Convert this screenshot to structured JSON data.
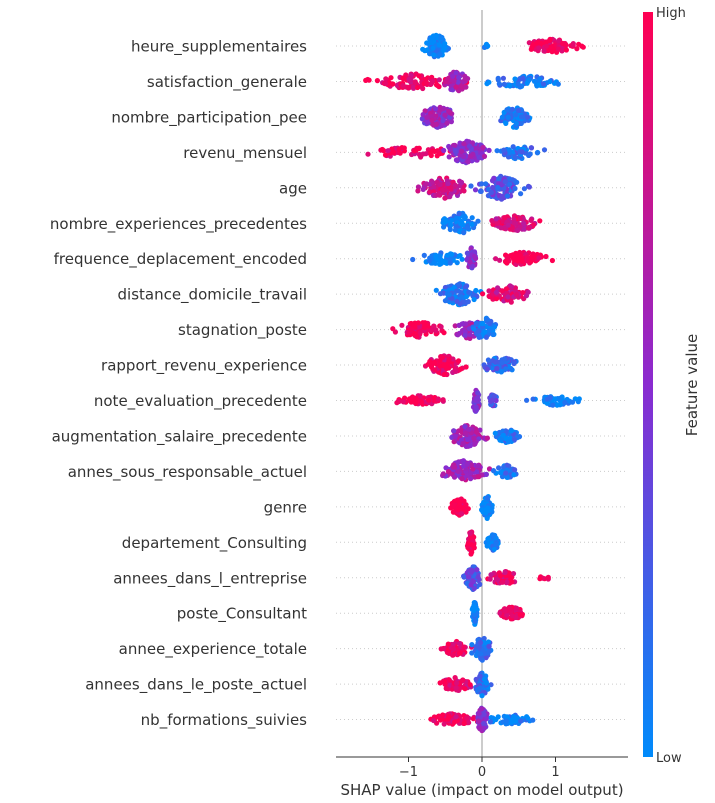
{
  "chart_data": {
    "type": "scatter",
    "subtype": "shap-beeswarm",
    "xlabel": "SHAP value (impact on model output)",
    "x_ticks": [
      -1,
      0,
      1
    ],
    "xlim": [
      -1.95,
      1.95
    ],
    "colorbar": {
      "label": "Feature value",
      "high": "High",
      "low": "Low",
      "low_color": "#008bfb",
      "mid_color": "#8a2bd0",
      "high_color": "#ff0052"
    },
    "features": [
      {
        "name": "heure_supplementaires",
        "clusters": [
          {
            "center": -0.62,
            "spread": 0.28,
            "width": 12,
            "count": 110,
            "color": 0.0
          },
          {
            "center": 0.95,
            "spread": 0.6,
            "width": 7,
            "count": 90,
            "color": 1.0
          },
          {
            "center": 0.05,
            "spread": 0.12,
            "width": 2,
            "count": 6,
            "color": 0.0
          }
        ]
      },
      {
        "name": "satisfaction_generale",
        "clusters": [
          {
            "center": -0.9,
            "spread": 0.9,
            "width": 8,
            "count": 90,
            "color": 0.95
          },
          {
            "center": -0.35,
            "spread": 0.25,
            "width": 11,
            "count": 60,
            "color": 0.6
          },
          {
            "center": 0.55,
            "spread": 0.8,
            "width": 6,
            "count": 70,
            "color": 0.08
          }
        ]
      },
      {
        "name": "nombre_participation_pee",
        "clusters": [
          {
            "center": -0.6,
            "spread": 0.4,
            "width": 11,
            "count": 110,
            "color": 0.55
          },
          {
            "center": 0.45,
            "spread": 0.3,
            "width": 11,
            "count": 80,
            "color": 0.08
          }
        ]
      },
      {
        "name": "revenu_mensuel",
        "clusters": [
          {
            "center": -0.9,
            "spread": 0.9,
            "width": 6,
            "count": 60,
            "color": 0.95
          },
          {
            "center": -0.2,
            "spread": 0.45,
            "width": 12,
            "count": 120,
            "color": 0.5
          },
          {
            "center": 0.5,
            "spread": 0.5,
            "width": 7,
            "count": 50,
            "color": 0.12
          }
        ]
      },
      {
        "name": "age",
        "clusters": [
          {
            "center": -0.5,
            "spread": 0.5,
            "width": 11,
            "count": 100,
            "color": 0.75
          },
          {
            "center": 0.25,
            "spread": 0.5,
            "width": 12,
            "count": 100,
            "color": 0.3
          }
        ]
      },
      {
        "name": "nombre_experiences_precedentes",
        "clusters": [
          {
            "center": -0.3,
            "spread": 0.35,
            "width": 11,
            "count": 70,
            "color": 0.05
          },
          {
            "center": 0.45,
            "spread": 0.55,
            "width": 8,
            "count": 80,
            "color": 0.85
          }
        ]
      },
      {
        "name": "frequence_deplacement_encoded",
        "clusters": [
          {
            "center": -0.55,
            "spread": 0.55,
            "width": 6,
            "count": 60,
            "color": 0.0
          },
          {
            "center": -0.15,
            "spread": 0.1,
            "width": 12,
            "count": 40,
            "color": 0.5
          },
          {
            "center": 0.55,
            "spread": 0.5,
            "width": 7,
            "count": 70,
            "color": 1.0
          }
        ]
      },
      {
        "name": "distance_domicile_travail",
        "clusters": [
          {
            "center": -0.3,
            "spread": 0.45,
            "width": 11,
            "count": 100,
            "color": 0.1
          },
          {
            "center": 0.35,
            "spread": 0.45,
            "width": 9,
            "count": 70,
            "color": 0.85
          }
        ]
      },
      {
        "name": "stagnation_poste",
        "clusters": [
          {
            "center": -0.85,
            "spread": 0.5,
            "width": 8,
            "count": 80,
            "color": 0.95
          },
          {
            "center": -0.15,
            "spread": 0.35,
            "width": 10,
            "count": 60,
            "color": 0.6
          },
          {
            "center": 0.05,
            "spread": 0.25,
            "width": 12,
            "count": 60,
            "color": 0.05
          }
        ]
      },
      {
        "name": "rapport_revenu_experience",
        "clusters": [
          {
            "center": -0.5,
            "spread": 0.4,
            "width": 10,
            "count": 90,
            "color": 0.95
          },
          {
            "center": 0.25,
            "spread": 0.35,
            "width": 9,
            "count": 70,
            "color": 0.2
          }
        ]
      },
      {
        "name": "note_evaluation_precedente",
        "clusters": [
          {
            "center": -0.85,
            "spread": 0.5,
            "width": 5,
            "count": 70,
            "color": 1.0
          },
          {
            "center": -0.08,
            "spread": 0.08,
            "width": 12,
            "count": 40,
            "color": 0.5
          },
          {
            "center": 0.15,
            "spread": 0.08,
            "width": 7,
            "count": 20,
            "color": 0.3
          },
          {
            "center": 1.0,
            "spread": 0.45,
            "width": 5,
            "count": 50,
            "color": 0.0
          }
        ]
      },
      {
        "name": "augmentation_salaire_precedente",
        "clusters": [
          {
            "center": -0.2,
            "spread": 0.35,
            "width": 11,
            "count": 100,
            "color": 0.6
          },
          {
            "center": 0.35,
            "spread": 0.3,
            "width": 7,
            "count": 50,
            "color": 0.1
          }
        ]
      },
      {
        "name": "annes_sous_responsable_actuel",
        "clusters": [
          {
            "center": -0.25,
            "spread": 0.45,
            "width": 11,
            "count": 100,
            "color": 0.6
          },
          {
            "center": 0.35,
            "spread": 0.25,
            "width": 7,
            "count": 40,
            "color": 0.1
          }
        ]
      },
      {
        "name": "genre",
        "clusters": [
          {
            "center": -0.3,
            "spread": 0.2,
            "width": 9,
            "count": 70,
            "color": 1.0
          },
          {
            "center": 0.07,
            "spread": 0.12,
            "width": 12,
            "count": 60,
            "color": 0.0
          }
        ]
      },
      {
        "name": "departement_Consulting",
        "clusters": [
          {
            "center": -0.15,
            "spread": 0.08,
            "width": 12,
            "count": 60,
            "color": 1.0
          },
          {
            "center": 0.15,
            "spread": 0.15,
            "width": 8,
            "count": 40,
            "color": 0.05
          }
        ]
      },
      {
        "name": "annees_dans_l_entreprise",
        "clusters": [
          {
            "center": -0.12,
            "spread": 0.18,
            "width": 12,
            "count": 100,
            "color": 0.3
          },
          {
            "center": 0.3,
            "spread": 0.35,
            "width": 7,
            "count": 50,
            "color": 0.9
          },
          {
            "center": 0.85,
            "spread": 0.15,
            "width": 2,
            "count": 6,
            "color": 1.0
          }
        ]
      },
      {
        "name": "poste_Consultant",
        "clusters": [
          {
            "center": -0.1,
            "spread": 0.05,
            "width": 12,
            "count": 60,
            "color": 0.0
          },
          {
            "center": 0.4,
            "spread": 0.25,
            "width": 7,
            "count": 60,
            "color": 1.0
          }
        ]
      },
      {
        "name": "annee_experience_totale",
        "clusters": [
          {
            "center": -0.35,
            "spread": 0.3,
            "width": 8,
            "count": 60,
            "color": 0.95
          },
          {
            "center": 0.0,
            "spread": 0.2,
            "width": 12,
            "count": 80,
            "color": 0.15
          }
        ]
      },
      {
        "name": "annees_dans_le_poste_actuel",
        "clusters": [
          {
            "center": -0.35,
            "spread": 0.35,
            "width": 7,
            "count": 60,
            "color": 0.9
          },
          {
            "center": 0.0,
            "spread": 0.15,
            "width": 12,
            "count": 70,
            "color": 0.15
          }
        ]
      },
      {
        "name": "nb_formations_suivies",
        "clusters": [
          {
            "center": -0.4,
            "spread": 0.5,
            "width": 6,
            "count": 70,
            "color": 0.95
          },
          {
            "center": 0.0,
            "spread": 0.12,
            "width": 12,
            "count": 60,
            "color": 0.5
          },
          {
            "center": 0.4,
            "spread": 0.5,
            "width": 5,
            "count": 50,
            "color": 0.05
          }
        ]
      }
    ]
  }
}
